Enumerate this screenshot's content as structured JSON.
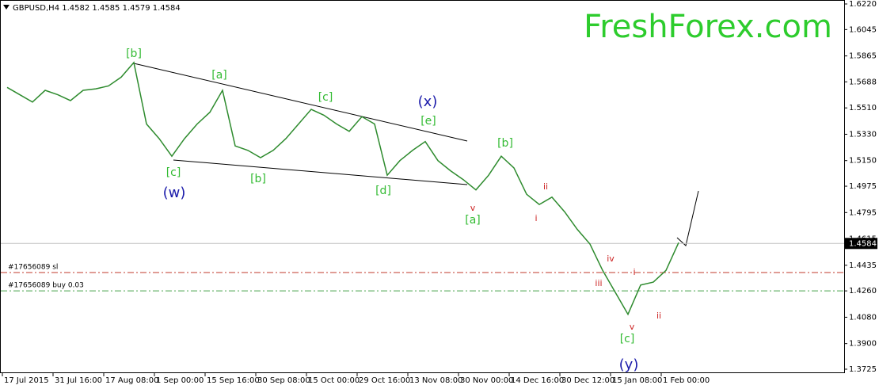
{
  "chart_data": {
    "type": "line",
    "title": "GBPUSD,H4  1.4582 1.4585 1.4579 1.4584",
    "watermark": "FreshForex.com",
    "categories": [
      null,
      "17 Jul 2015",
      null,
      null,
      null,
      "31 Jul 16:00",
      null,
      null,
      null,
      "17 Aug 08:00",
      null,
      null,
      null,
      "1 Sep 00:00",
      null,
      null,
      null,
      "15 Sep 16:00",
      null,
      null,
      null,
      "30 Sep 08:00",
      null,
      null,
      null,
      "15 Oct 00:00",
      null,
      null,
      null,
      "29 Oct 16:00",
      null,
      null,
      null,
      "13 Nov 08:00",
      null,
      null,
      null,
      "30 Nov 00:00",
      null,
      null,
      null,
      "14 Dec 16:00",
      null,
      null,
      null,
      "30 Dec 12:00",
      null,
      null,
      null,
      "15 Jan 08:00",
      null,
      null,
      null,
      "1 Feb 00:00"
    ],
    "series": [
      {
        "name": "GBPUSD",
        "color": "#2e8b2e",
        "values": [
          1.565,
          1.56,
          1.555,
          1.563,
          1.56,
          1.556,
          1.563,
          1.564,
          1.566,
          1.572,
          1.582,
          1.54,
          1.53,
          1.518,
          1.53,
          1.54,
          1.548,
          1.563,
          1.525,
          1.522,
          1.517,
          1.522,
          1.53,
          1.54,
          1.55,
          1.546,
          1.54,
          1.535,
          1.545,
          1.54,
          1.505,
          1.515,
          1.522,
          1.528,
          1.515,
          1.508,
          1.502,
          1.495,
          1.505,
          1.518,
          1.51,
          1.492,
          1.485,
          1.49,
          1.48,
          1.468,
          1.458,
          1.44,
          1.425,
          1.41,
          1.43,
          1.432,
          1.44,
          1.459
        ]
      }
    ],
    "ylim": [
      1.3725,
      1.622
    ],
    "yticks": [
      {
        "value": 1.622,
        "label": "1.6220"
      },
      1.6045,
      1.5865,
      1.5688,
      {
        "value": 1.551,
        "label": "1.5510"
      },
      {
        "value": 1.533,
        "label": "1.5330"
      },
      {
        "value": 1.515,
        "label": "1.5150"
      },
      1.4975,
      1.4795,
      1.4615,
      1.4435,
      {
        "value": 1.426,
        "label": "1.4260"
      },
      {
        "value": 1.408,
        "label": "1.4080"
      },
      {
        "value": 1.39,
        "label": "1.3900"
      },
      1.3725
    ],
    "current_price": 1.4584,
    "levels": [
      {
        "label": "#17656089 sl",
        "value": 1.4385,
        "color": "#c0392b"
      },
      {
        "label": "#17656089 buy 0.03",
        "value": 1.426,
        "color": "#43a047"
      }
    ],
    "wave_labels": [
      {
        "text": "[b]",
        "color": "#33bb33"
      },
      {
        "text": "[a]",
        "color": "#33bb33"
      },
      {
        "text": "[c]",
        "color": "#33bb33"
      },
      {
        "text": "(x)",
        "color": "#1a1aaa"
      },
      {
        "text": "[e]",
        "color": "#33bb33"
      },
      {
        "text": "[b]",
        "color": "#33bb33"
      },
      {
        "text": "[c]",
        "color": "#33bb33"
      },
      {
        "text": "(w)",
        "color": "#1a1aaa"
      },
      {
        "text": "[b]",
        "color": "#33bb33"
      },
      {
        "text": "[d]",
        "color": "#33bb33"
      },
      {
        "text": "v",
        "color": "#cc2222"
      },
      {
        "text": "[a]",
        "color": "#33bb33"
      },
      {
        "text": "ii",
        "color": "#cc2222"
      },
      {
        "text": "i",
        "color": "#cc2222"
      },
      {
        "text": "iv",
        "color": "#cc2222"
      },
      {
        "text": "iii",
        "color": "#cc2222"
      },
      {
        "text": "i",
        "color": "#cc2222"
      },
      {
        "text": "v",
        "color": "#cc2222"
      },
      {
        "text": "[c]",
        "color": "#33bb33"
      },
      {
        "text": "ii",
        "color": "#cc2222"
      },
      {
        "text": "(y)",
        "color": "#1a1aaa"
      }
    ]
  }
}
